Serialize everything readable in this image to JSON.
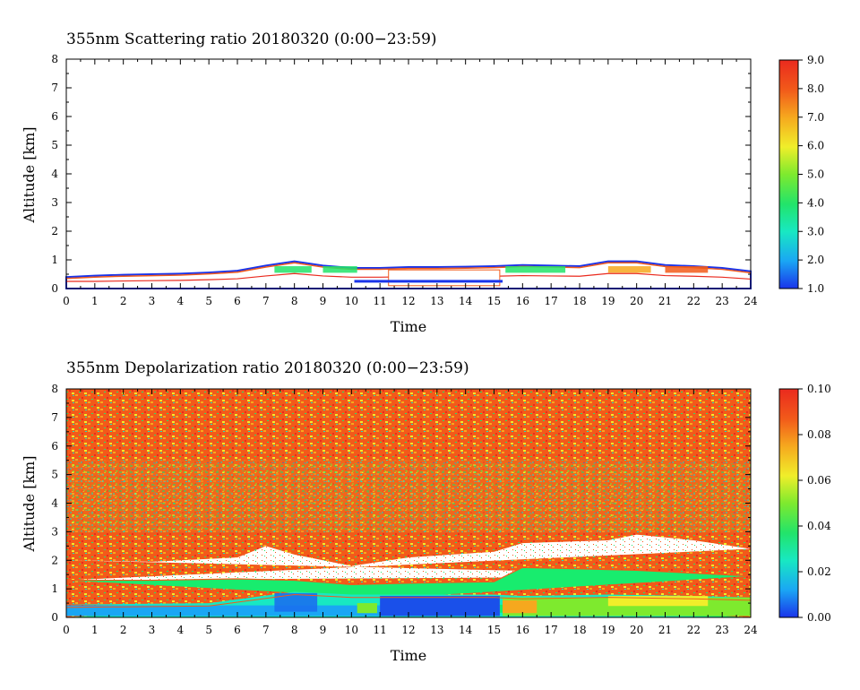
{
  "chart_data": [
    {
      "type": "heatmap",
      "title": "355nm Scattering ratio  20180320 (0:00−23:59)",
      "xlabel": "Time",
      "ylabel": "Altitude [km]",
      "xlim": [
        0,
        24
      ],
      "ylim": [
        0,
        8
      ],
      "x_ticks": [
        "0",
        "1",
        "2",
        "3",
        "4",
        "5",
        "6",
        "7",
        "8",
        "9",
        "10",
        "11",
        "12",
        "13",
        "14",
        "15",
        "16",
        "17",
        "18",
        "19",
        "20",
        "21",
        "22",
        "23",
        "24"
      ],
      "y_ticks": [
        "0",
        "1",
        "2",
        "3",
        "4",
        "5",
        "6",
        "7",
        "8"
      ],
      "colorbar": {
        "min": 1.0,
        "max": 9.0,
        "ticks": [
          "1.0",
          "2.0",
          "3.0",
          "4.0",
          "5.0",
          "6.0",
          "7.0",
          "8.0",
          "9.0"
        ]
      },
      "boundary_layer_top_km": [
        [
          0,
          0.4
        ],
        [
          1,
          0.45
        ],
        [
          2,
          0.48
        ],
        [
          3,
          0.5
        ],
        [
          4,
          0.52
        ],
        [
          5,
          0.56
        ],
        [
          6,
          0.62
        ],
        [
          7,
          0.8
        ],
        [
          8,
          0.95
        ],
        [
          9,
          0.8
        ],
        [
          10,
          0.72
        ],
        [
          11,
          0.72
        ],
        [
          12,
          0.75
        ],
        [
          13,
          0.75
        ],
        [
          14,
          0.76
        ],
        [
          15,
          0.78
        ],
        [
          16,
          0.82
        ],
        [
          17,
          0.8
        ],
        [
          18,
          0.78
        ],
        [
          19,
          0.95
        ],
        [
          20,
          0.95
        ],
        [
          21,
          0.82
        ],
        [
          22,
          0.78
        ],
        [
          23,
          0.72
        ],
        [
          24,
          0.6
        ]
      ]
    },
    {
      "type": "heatmap",
      "title": "355nm Depolarization ratio  20180320 (0:00−23:59)",
      "xlabel": "Time",
      "ylabel": "Altitude [km]",
      "xlim": [
        0,
        24
      ],
      "ylim": [
        0,
        8
      ],
      "x_ticks": [
        "0",
        "1",
        "2",
        "3",
        "4",
        "5",
        "6",
        "7",
        "8",
        "9",
        "10",
        "11",
        "12",
        "13",
        "14",
        "15",
        "16",
        "17",
        "18",
        "19",
        "20",
        "21",
        "22",
        "23",
        "24"
      ],
      "y_ticks": [
        "0",
        "1",
        "2",
        "3",
        "4",
        "5",
        "6",
        "7",
        "8"
      ],
      "colorbar": {
        "min": 0.0,
        "max": 0.1,
        "ticks": [
          "0.00",
          "0.02",
          "0.04",
          "0.06",
          "0.08",
          "0.10"
        ]
      },
      "layers": {
        "aerosol_layer_top_km": [
          [
            0,
            1.3
          ],
          [
            3,
            1.3
          ],
          [
            6,
            1.35
          ],
          [
            8,
            1.3
          ],
          [
            10,
            1.15
          ],
          [
            12,
            1.2
          ],
          [
            15,
            1.25
          ],
          [
            16,
            1.75
          ],
          [
            20,
            1.65
          ],
          [
            24,
            1.45
          ]
        ],
        "clear_band_top_km": [
          [
            0,
            2.0
          ],
          [
            3,
            1.95
          ],
          [
            6,
            2.1
          ],
          [
            7,
            2.5
          ],
          [
            8,
            2.2
          ],
          [
            10,
            1.8
          ],
          [
            12,
            2.1
          ],
          [
            15,
            2.3
          ],
          [
            16,
            2.6
          ],
          [
            19,
            2.7
          ],
          [
            20,
            2.9
          ],
          [
            22,
            2.7
          ],
          [
            24,
            2.4
          ]
        ],
        "low_depol_top_km": [
          [
            0,
            0.45
          ],
          [
            5,
            0.5
          ],
          [
            8,
            0.9
          ],
          [
            10,
            0.8
          ],
          [
            11,
            0.8
          ],
          [
            15,
            0.8
          ],
          [
            16,
            0.75
          ],
          [
            19,
            0.8
          ],
          [
            22,
            0.75
          ],
          [
            24,
            0.7
          ]
        ]
      }
    }
  ],
  "colormap": [
    "#1a34ea",
    "#1aa6f4",
    "#18e8c2",
    "#22e46a",
    "#7eea2e",
    "#f0ee2a",
    "#f6a81e",
    "#f25a1a",
    "#ea2a1e"
  ]
}
